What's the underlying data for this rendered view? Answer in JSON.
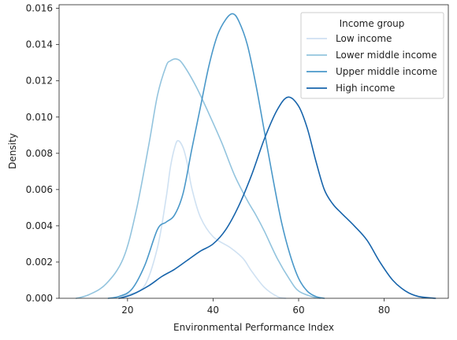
{
  "chart_data": {
    "type": "line",
    "xlabel": "Environmental Performance Index",
    "ylabel": "Density",
    "xlim": [
      4,
      95
    ],
    "ylim": [
      0,
      0.0162
    ],
    "xticks": [
      20,
      40,
      60,
      80
    ],
    "xtick_labels": [
      "20",
      "40",
      "60",
      "80"
    ],
    "yticks": [
      0,
      0.002,
      0.004,
      0.006,
      0.008,
      0.01,
      0.012,
      0.014,
      0.016
    ],
    "ytick_labels": [
      "0.000",
      "0.002",
      "0.004",
      "0.006",
      "0.008",
      "0.010",
      "0.012",
      "0.014",
      "0.016"
    ],
    "grid": false,
    "legend": {
      "title": "Income group",
      "placement": "upper right"
    },
    "series": [
      {
        "name": "Low income",
        "color": "#cfe1f2",
        "points": [
          [
            15.5,
            0.0
          ],
          [
            20,
            0.0002
          ],
          [
            24,
            0.0007
          ],
          [
            27,
            0.0028
          ],
          [
            29,
            0.0055
          ],
          [
            30,
            0.0072
          ],
          [
            31,
            0.0083
          ],
          [
            31.8,
            0.0087
          ],
          [
            33,
            0.0083
          ],
          [
            34,
            0.0074
          ],
          [
            35,
            0.0061
          ],
          [
            37,
            0.0045
          ],
          [
            40,
            0.0034
          ],
          [
            44,
            0.0028
          ],
          [
            47,
            0.0022
          ],
          [
            49,
            0.0015
          ],
          [
            52,
            0.0006
          ],
          [
            55,
            0.0001
          ],
          [
            57,
            0.0
          ]
        ]
      },
      {
        "name": "Lower middle income",
        "color": "#93c4de",
        "points": [
          [
            8,
            0.0
          ],
          [
            11,
            0.0002
          ],
          [
            15,
            0.0008
          ],
          [
            19,
            0.0022
          ],
          [
            22,
            0.0048
          ],
          [
            25,
            0.0085
          ],
          [
            27,
            0.0112
          ],
          [
            29,
            0.0128
          ],
          [
            30,
            0.0131
          ],
          [
            31.5,
            0.0132
          ],
          [
            33,
            0.0129
          ],
          [
            36,
            0.0117
          ],
          [
            39,
            0.0102
          ],
          [
            42,
            0.0086
          ],
          [
            45,
            0.0068
          ],
          [
            48,
            0.0054
          ],
          [
            50,
            0.0046
          ],
          [
            52,
            0.0037
          ],
          [
            55,
            0.0022
          ],
          [
            58,
            0.001
          ],
          [
            60,
            0.0004
          ],
          [
            63,
            0.0001
          ],
          [
            65,
            0.0
          ]
        ]
      },
      {
        "name": "Upper middle income",
        "color": "#4a98c9",
        "points": [
          [
            15.5,
            0.0
          ],
          [
            18,
            0.0001
          ],
          [
            21,
            0.0005
          ],
          [
            24,
            0.0018
          ],
          [
            27,
            0.0038
          ],
          [
            29,
            0.0042
          ],
          [
            31,
            0.0046
          ],
          [
            33,
            0.0058
          ],
          [
            35,
            0.0082
          ],
          [
            37,
            0.0105
          ],
          [
            39,
            0.0128
          ],
          [
            41,
            0.0145
          ],
          [
            43,
            0.0154
          ],
          [
            44.6,
            0.0157
          ],
          [
            46,
            0.0153
          ],
          [
            48,
            0.014
          ],
          [
            50,
            0.0118
          ],
          [
            52,
            0.0092
          ],
          [
            54,
            0.0066
          ],
          [
            56,
            0.0042
          ],
          [
            58,
            0.0024
          ],
          [
            60,
            0.0011
          ],
          [
            62,
            0.0004
          ],
          [
            64,
            0.0001
          ],
          [
            66,
            0.0
          ]
        ]
      },
      {
        "name": "High income",
        "color": "#1764ab",
        "points": [
          [
            18,
            0.0
          ],
          [
            21,
            0.0002
          ],
          [
            25,
            0.0007
          ],
          [
            28,
            0.0012
          ],
          [
            31,
            0.0016
          ],
          [
            34,
            0.0021
          ],
          [
            37,
            0.0026
          ],
          [
            40,
            0.003
          ],
          [
            43,
            0.0038
          ],
          [
            46,
            0.0051
          ],
          [
            49,
            0.0068
          ],
          [
            52,
            0.0088
          ],
          [
            55,
            0.0104
          ],
          [
            57.5,
            0.0111
          ],
          [
            60,
            0.0106
          ],
          [
            62,
            0.0094
          ],
          [
            64,
            0.0076
          ],
          [
            66,
            0.006
          ],
          [
            68,
            0.0052
          ],
          [
            70,
            0.0047
          ],
          [
            73,
            0.004
          ],
          [
            76,
            0.0032
          ],
          [
            79,
            0.002
          ],
          [
            82,
            0.001
          ],
          [
            85,
            0.0004
          ],
          [
            88,
            0.0001
          ],
          [
            92,
            0.0
          ]
        ]
      }
    ]
  }
}
